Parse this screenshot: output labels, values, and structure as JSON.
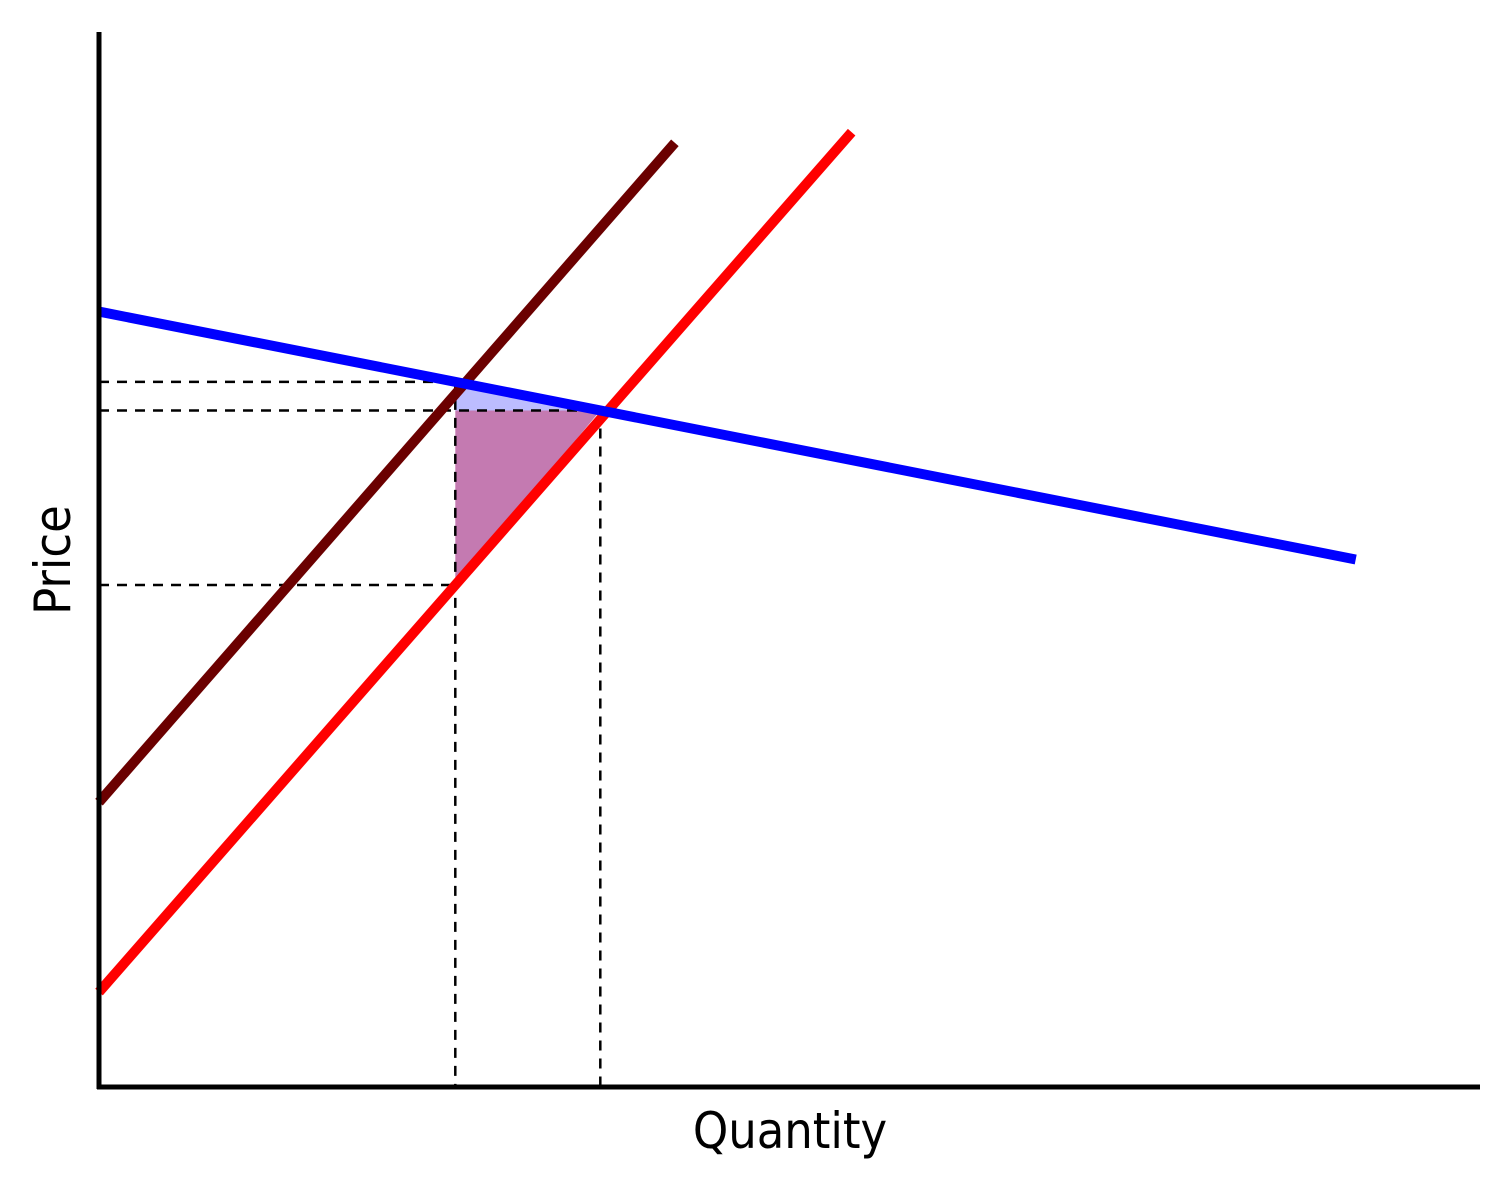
{
  "diagram": {
    "type": "supply-demand",
    "x_axis_label": "Quantity",
    "y_axis_label": "Price",
    "curves": [
      {
        "id": "demand",
        "color": "#0000ff",
        "from": [
          0,
          0.735
        ],
        "to": [
          0.91,
          0.5
        ]
      },
      {
        "id": "supply-original",
        "color": "#ff0000",
        "from": [
          0,
          0.09
        ],
        "to": [
          0.545,
          0.905
        ]
      },
      {
        "id": "supply-shifted",
        "color": "#6b0000",
        "from": [
          0,
          0.27
        ],
        "to": [
          0.417,
          0.895
        ]
      }
    ],
    "guides": {
      "quantities": [
        0.258,
        0.363
      ],
      "prices": [
        0.665,
        0.64,
        0.478
      ]
    },
    "shaded_regions": [
      {
        "id": "deadweight-loss",
        "color": "#c47ab1"
      },
      {
        "id": "consumer-surplus-loss",
        "color": "#b0b0ff"
      }
    ],
    "colors": {
      "axis": "#000000",
      "guide": "#000000",
      "background": "#ffffff"
    }
  }
}
